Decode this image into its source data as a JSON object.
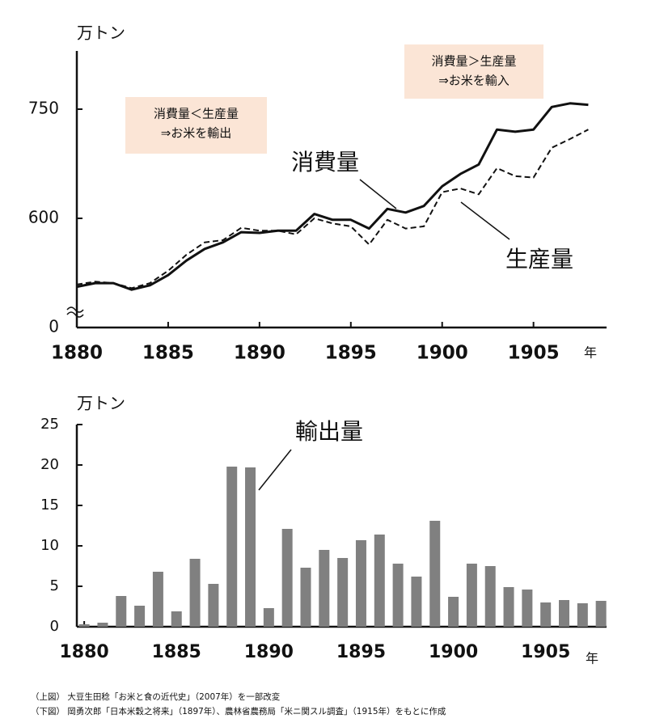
{
  "chart_data": [
    {
      "type": "line",
      "y_unit": "万トン",
      "x_unit": "年",
      "x": [
        1880,
        1881,
        1882,
        1883,
        1884,
        1885,
        1886,
        1887,
        1888,
        1889,
        1890,
        1891,
        1892,
        1893,
        1894,
        1895,
        1896,
        1897,
        1898,
        1899,
        1900,
        1901,
        1902,
        1903,
        1904,
        1905,
        1906,
        1907,
        1908
      ],
      "series": [
        {
          "name": "消費量",
          "color": "#111111",
          "linestyle": "solid",
          "values": [
            506,
            511,
            511,
            502,
            508,
            522,
            542,
            558,
            567,
            581,
            580,
            583,
            583,
            606,
            598,
            598,
            586,
            613,
            608,
            617,
            644,
            661,
            674,
            722,
            719,
            722,
            753,
            758,
            756
          ]
        },
        {
          "name": "生産量",
          "color": "#111111",
          "linestyle": "dashed",
          "values": [
            509,
            513,
            511,
            504,
            511,
            528,
            550,
            567,
            570,
            587,
            583,
            583,
            578,
            600,
            593,
            589,
            564,
            598,
            586,
            589,
            636,
            641,
            633,
            669,
            658,
            656,
            697,
            709,
            722
          ]
        }
      ],
      "annotations": [
        {
          "lines": [
            "消費量＜生産量",
            "⇒お米を輸出"
          ]
        },
        {
          "lines": [
            "消費量＞生産量",
            "⇒お米を輸入"
          ]
        }
      ],
      "xlim": [
        1880,
        1909
      ],
      "xticks": [
        1880,
        1885,
        1890,
        1895,
        1900,
        1905
      ],
      "ylim": [
        0,
        830
      ],
      "axis_break": [
        0,
        450
      ],
      "yticks": [
        0,
        600,
        750
      ]
    },
    {
      "type": "bar",
      "y_unit": "万トン",
      "x_unit": "年",
      "color": "#808080",
      "series": [
        {
          "name": "輸出量",
          "values": [
            0.3,
            0.5,
            3.8,
            2.6,
            6.8,
            1.9,
            8.4,
            5.3,
            19.8,
            19.7,
            2.3,
            12.1,
            7.3,
            9.5,
            8.5,
            10.7,
            11.4,
            7.8,
            6.2,
            13.1,
            3.7,
            7.8,
            7.5,
            4.9,
            4.6,
            3.0,
            3.3,
            2.9,
            3.2
          ]
        }
      ],
      "x": [
        1880,
        1881,
        1882,
        1883,
        1884,
        1885,
        1886,
        1887,
        1888,
        1889,
        1890,
        1891,
        1892,
        1893,
        1894,
        1895,
        1896,
        1897,
        1898,
        1899,
        1900,
        1901,
        1902,
        1903,
        1904,
        1905,
        1906,
        1907,
        1908
      ],
      "xlim": [
        1879.6,
        1908.3
      ],
      "xticks": [
        1880,
        1885,
        1890,
        1895,
        1900,
        1905
      ],
      "ylim": [
        0,
        25
      ],
      "yticks": [
        0,
        5,
        10,
        15,
        20,
        25
      ]
    }
  ],
  "sources": [
    "（上図） 大豆生田稔「お米と食の近代史」（2007年）を一部改変",
    "（下図） 岡勇次郎「日本米穀之将来」（1897年）、農林省農務局「米ニ関スル調査」（1915年）をもとに作成"
  ]
}
